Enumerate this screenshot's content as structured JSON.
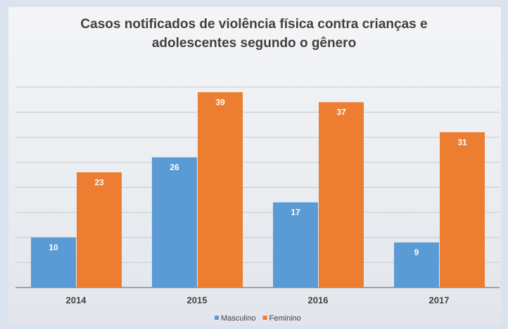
{
  "chart_data": {
    "type": "bar",
    "title": [
      "Casos notificados de violência física contra crianças e",
      "adolescentes segundo o gênero"
    ],
    "categories": [
      "2014",
      "2015",
      "2016",
      "2017"
    ],
    "series": [
      {
        "name": "Masculino",
        "color": "#5b9bd5",
        "values": [
          10,
          26,
          17,
          9
        ]
      },
      {
        "name": "Feminino",
        "color": "#ed7d31",
        "values": [
          23,
          39,
          37,
          31
        ]
      }
    ],
    "ylim": [
      0,
      40
    ],
    "yticks": [
      0,
      5,
      10,
      15,
      20,
      25,
      30,
      35,
      40
    ],
    "grid": true,
    "legend": "bottom"
  }
}
